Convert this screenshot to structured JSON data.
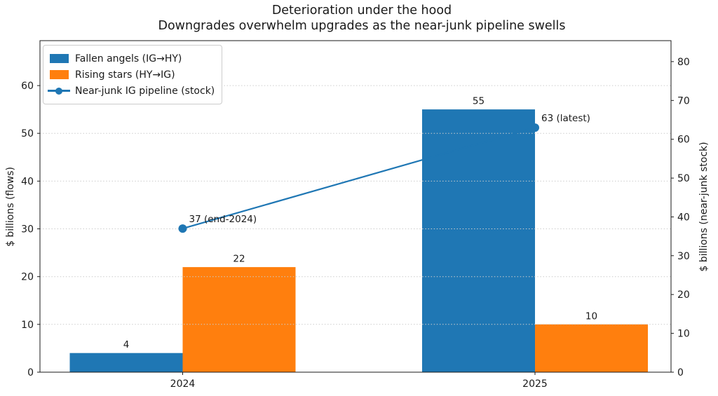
{
  "title": "Deterioration under the hood",
  "subtitle": "Downgrades overwhelm upgrades as the near-junk pipeline swells",
  "colors": {
    "background": "#ffffff",
    "text": "#1a1a1a",
    "grid": "#cccccc",
    "spine": "#1a1a1a",
    "blue": "#1f77b4",
    "orange": "#ff7f0e"
  },
  "chart_data": {
    "type": "bar",
    "categories": [
      "2024",
      "2025"
    ],
    "series": [
      {
        "name": "Fallen angels (IG→HY)",
        "type": "bar",
        "axis": "left",
        "color": "#1f77b4",
        "values": [
          4,
          55
        ]
      },
      {
        "name": "Rising stars (HY→IG)",
        "type": "bar",
        "axis": "left",
        "color": "#ff7f0e",
        "values": [
          22,
          10
        ]
      },
      {
        "name": "Near-junk IG pipeline (stock)",
        "type": "line",
        "axis": "right",
        "color": "#1f77b4",
        "marker": "circle",
        "values": [
          37,
          63
        ],
        "annotations": [
          "37 (end-2024)",
          "63 (latest)"
        ]
      }
    ],
    "ylabel_left": "$ billions (flows)",
    "ylabel_right": "$ billions (near-junk stock)",
    "yticks_left": [
      0,
      10,
      20,
      30,
      40,
      50,
      60
    ],
    "yticks_right": [
      0,
      10,
      20,
      30,
      40,
      50,
      60,
      70,
      80
    ],
    "ylim_left": [
      0,
      69.4
    ],
    "ylim_right": [
      0,
      85.4
    ],
    "grid": {
      "axis": "y",
      "style": "dotted"
    },
    "legend_position": "upper-left"
  }
}
